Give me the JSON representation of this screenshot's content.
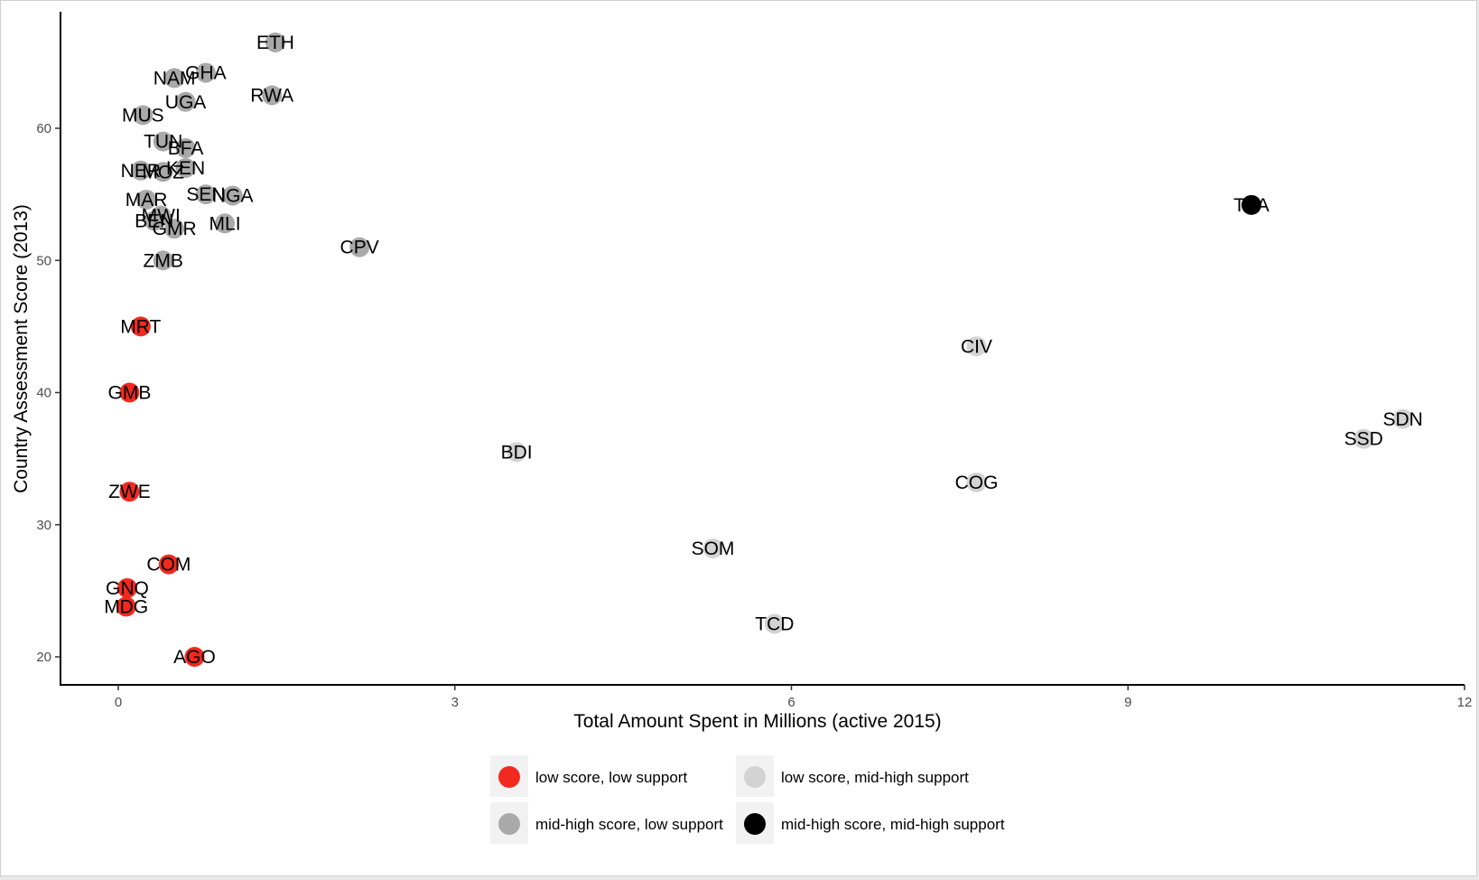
{
  "chart_data": {
    "type": "scatter",
    "title": "",
    "xlabel": "Total Amount Spent in Millions (active 2015)",
    "ylabel": "Country Assessment Score (2013)",
    "xlim": [
      -0.5,
      12
    ],
    "ylim": [
      18,
      68
    ],
    "xticks": [
      0,
      3,
      6,
      9,
      12
    ],
    "yticks": [
      20,
      30,
      40,
      50,
      60
    ],
    "grid": false,
    "legend_position": "bottom",
    "series": [
      {
        "name": "low score, low support",
        "color": "#f2291f",
        "points": [
          {
            "label": "MRT",
            "x": 0.2,
            "y": 45.0
          },
          {
            "label": "GMB",
            "x": 0.1,
            "y": 40.0
          },
          {
            "label": "ZWE",
            "x": 0.1,
            "y": 32.5
          },
          {
            "label": "COM",
            "x": 0.45,
            "y": 27.0
          },
          {
            "label": "GNQ",
            "x": 0.08,
            "y": 25.2
          },
          {
            "label": "MDG",
            "x": 0.07,
            "y": 23.8
          },
          {
            "label": "AGO",
            "x": 0.68,
            "y": 20.0
          }
        ]
      },
      {
        "name": "low score, mid-high support",
        "color": "#d3d3d3",
        "points": [
          {
            "label": "CIV",
            "x": 7.65,
            "y": 43.5
          },
          {
            "label": "SDN",
            "x": 11.45,
            "y": 38.0
          },
          {
            "label": "SSD",
            "x": 11.1,
            "y": 36.5
          },
          {
            "label": "BDI",
            "x": 3.55,
            "y": 35.5
          },
          {
            "label": "COG",
            "x": 7.65,
            "y": 33.2
          },
          {
            "label": "SOM",
            "x": 5.3,
            "y": 28.2
          },
          {
            "label": "TCD",
            "x": 5.85,
            "y": 22.5
          }
        ]
      },
      {
        "name": "mid-high score, low support",
        "color": "#a9a9a9",
        "points": [
          {
            "label": "ETH",
            "x": 1.4,
            "y": 66.5
          },
          {
            "label": "GHA",
            "x": 0.78,
            "y": 64.2
          },
          {
            "label": "NAM",
            "x": 0.5,
            "y": 63.8
          },
          {
            "label": "RWA",
            "x": 1.37,
            "y": 62.5
          },
          {
            "label": "UGA",
            "x": 0.6,
            "y": 62.0
          },
          {
            "label": "MUS",
            "x": 0.22,
            "y": 61.0
          },
          {
            "label": "TUN",
            "x": 0.4,
            "y": 59.0
          },
          {
            "label": "BFA",
            "x": 0.6,
            "y": 58.5
          },
          {
            "label": "KEN",
            "x": 0.6,
            "y": 57.0
          },
          {
            "label": "NER",
            "x": 0.2,
            "y": 56.8
          },
          {
            "label": "MOZ",
            "x": 0.4,
            "y": 56.7
          },
          {
            "label": "SEN",
            "x": 0.78,
            "y": 55.0
          },
          {
            "label": "NGA",
            "x": 1.02,
            "y": 54.9
          },
          {
            "label": "MAR",
            "x": 0.25,
            "y": 54.6
          },
          {
            "label": "MWI",
            "x": 0.38,
            "y": 53.4
          },
          {
            "label": "BEN",
            "x": 0.32,
            "y": 53.0
          },
          {
            "label": "GMR",
            "x": 0.5,
            "y": 52.4
          },
          {
            "label": "MLI",
            "x": 0.95,
            "y": 52.8
          },
          {
            "label": "CPV",
            "x": 2.15,
            "y": 51.0
          },
          {
            "label": "ZMB",
            "x": 0.4,
            "y": 50.0
          }
        ]
      },
      {
        "name": "mid-high score, mid-high support",
        "color": "#000000",
        "points": [
          {
            "label": "TZA",
            "x": 10.1,
            "y": 54.2
          }
        ]
      }
    ]
  },
  "legend": {
    "items": [
      {
        "label": "low score, low support",
        "color": "#f2291f"
      },
      {
        "label": "low score, mid-high support",
        "color": "#d3d3d3"
      },
      {
        "label": "mid-high score, low support",
        "color": "#a9a9a9"
      },
      {
        "label": "mid-high score, mid-high support",
        "color": "#000000"
      }
    ]
  }
}
